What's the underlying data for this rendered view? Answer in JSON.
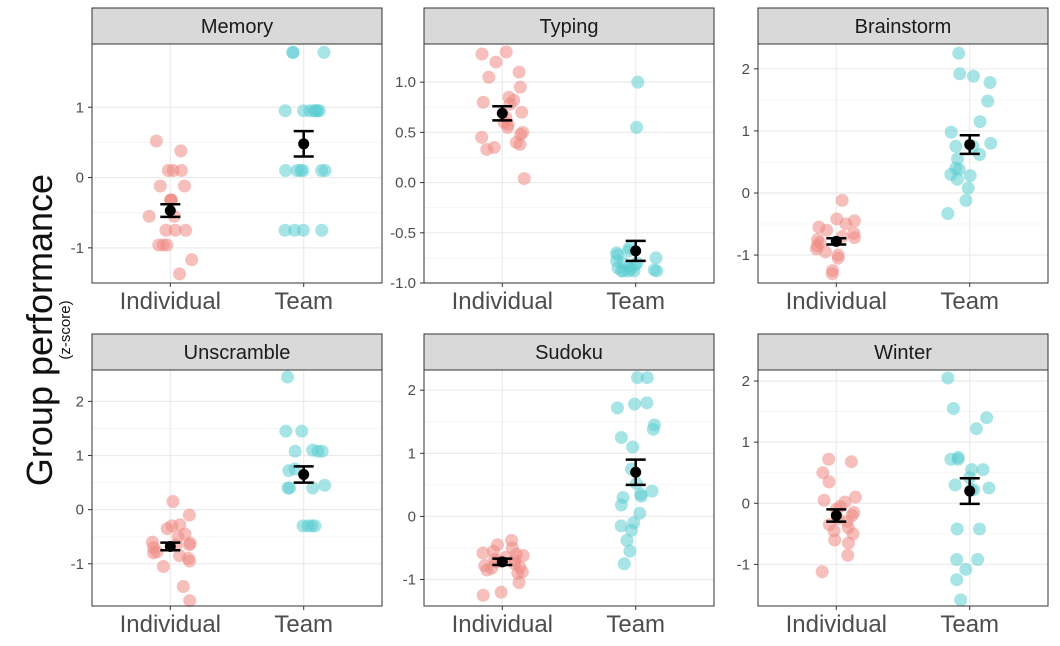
{
  "figure": {
    "ylabel": "Group performance",
    "ylabel_sub": "(z-score)"
  },
  "colors": {
    "individual": "#ee8a84",
    "team": "#5ccdd2",
    "mean": "#000000",
    "strip_bg": "#d9d9d9",
    "grid": "#ebebeb"
  },
  "chart_data": [
    {
      "type": "scatter",
      "title": "Memory",
      "categories": [
        "Individual",
        "Team"
      ],
      "ylim": [
        -1.5,
        1.9
      ],
      "yticks": [
        -1,
        0,
        1
      ],
      "series": [
        {
          "name": "Individual",
          "values": [
            0.52,
            0.38,
            0.1,
            0.1,
            -0.12,
            -0.12,
            0.1,
            -0.32,
            -0.32,
            -0.32,
            -0.55,
            -0.55,
            -0.75,
            -0.75,
            -0.75,
            -0.96,
            -0.96,
            -0.96,
            -1.17,
            -1.37
          ]
        },
        {
          "name": "Team",
          "values": [
            1.78,
            1.78,
            1.78,
            0.95,
            0.95,
            0.95,
            0.95,
            0.95,
            0.95,
            0.95,
            0.1,
            0.1,
            0.1,
            0.1,
            0.1,
            0.1,
            -0.75,
            -0.75,
            -0.75,
            -0.75
          ]
        }
      ],
      "means": [
        -0.47,
        0.48
      ],
      "se": [
        0.09,
        0.18
      ]
    },
    {
      "type": "scatter",
      "title": "Typing",
      "categories": [
        "Individual",
        "Team"
      ],
      "ylim": [
        -1.0,
        1.38
      ],
      "yticks": [
        -1.0,
        -0.5,
        0.0,
        0.5,
        1.0
      ],
      "ytick_labels": [
        "-1.0",
        "-0.5",
        "0.0",
        "0.5",
        "1.0"
      ],
      "series": [
        {
          "name": "Individual",
          "values": [
            1.3,
            1.28,
            1.2,
            1.1,
            1.05,
            0.95,
            0.85,
            0.82,
            0.8,
            0.78,
            0.7,
            0.65,
            0.6,
            0.58,
            0.55,
            0.5,
            0.48,
            0.45,
            0.4,
            0.38,
            0.35,
            0.33,
            0.04
          ]
        },
        {
          "name": "Team",
          "values": [
            1.0,
            0.55,
            -0.65,
            -0.68,
            -0.7,
            -0.72,
            -0.75,
            -0.78,
            -0.8,
            -0.8,
            -0.82,
            -0.84,
            -0.85,
            -0.86,
            -0.87,
            -0.88,
            -0.88,
            -0.88,
            -0.88,
            -0.88
          ]
        }
      ],
      "means": [
        0.69,
        -0.68
      ],
      "se": [
        0.07,
        0.1
      ]
    },
    {
      "type": "scatter",
      "title": "Brainstorm",
      "categories": [
        "Individual",
        "Team"
      ],
      "ylim": [
        -1.45,
        2.4
      ],
      "yticks": [
        -1,
        0,
        1,
        2
      ],
      "series": [
        {
          "name": "Individual",
          "values": [
            -0.12,
            -0.42,
            -0.45,
            -0.5,
            -0.55,
            -0.6,
            -0.65,
            -0.7,
            -0.72,
            -0.75,
            -0.8,
            -0.85,
            -0.9,
            -0.95,
            -1.0,
            -1.05,
            -1.25,
            -1.3
          ]
        },
        {
          "name": "Team",
          "values": [
            2.25,
            1.92,
            1.88,
            1.78,
            1.48,
            1.15,
            0.98,
            0.8,
            0.75,
            0.75,
            0.62,
            0.55,
            0.4,
            0.38,
            0.3,
            0.28,
            0.22,
            0.08,
            -0.12,
            -0.33
          ]
        }
      ],
      "means": [
        -0.78,
        0.78
      ],
      "se": [
        0.05,
        0.15
      ]
    },
    {
      "type": "scatter",
      "title": "Unscramble",
      "categories": [
        "Individual",
        "Team"
      ],
      "ylim": [
        -1.78,
        2.58
      ],
      "yticks": [
        -1,
        0,
        1,
        2
      ],
      "series": [
        {
          "name": "Individual",
          "values": [
            0.15,
            -0.1,
            -0.28,
            -0.3,
            -0.35,
            -0.45,
            -0.5,
            -0.6,
            -0.62,
            -0.65,
            -0.65,
            -0.7,
            -0.78,
            -0.8,
            -0.85,
            -0.9,
            -0.95,
            -1.05,
            -1.42,
            -1.68
          ]
        },
        {
          "name": "Team",
          "values": [
            2.45,
            1.45,
            1.45,
            1.1,
            1.08,
            1.08,
            1.08,
            0.75,
            0.72,
            0.45,
            0.4,
            0.4,
            0.4,
            -0.3,
            -0.3,
            -0.3,
            -0.3
          ]
        }
      ],
      "means": [
        -0.68,
        0.65
      ],
      "se": [
        0.07,
        0.15
      ]
    },
    {
      "type": "scatter",
      "title": "Sudoku",
      "categories": [
        "Individual",
        "Team"
      ],
      "ylim": [
        -1.42,
        2.32
      ],
      "yticks": [
        -1,
        0,
        1,
        2
      ],
      "series": [
        {
          "name": "Individual",
          "values": [
            -0.38,
            -0.45,
            -0.5,
            -0.55,
            -0.58,
            -0.6,
            -0.62,
            -0.65,
            -0.68,
            -0.7,
            -0.72,
            -0.75,
            -0.78,
            -0.8,
            -0.82,
            -0.85,
            -0.88,
            -0.9,
            -1.05,
            -1.2,
            -1.25
          ]
        },
        {
          "name": "Team",
          "values": [
            2.2,
            2.2,
            1.8,
            1.78,
            1.72,
            1.45,
            1.38,
            1.25,
            1.1,
            0.75,
            0.52,
            0.4,
            0.35,
            0.32,
            0.3,
            0.18,
            0.05,
            -0.1,
            -0.15,
            -0.22,
            -0.38,
            -0.55,
            -0.75
          ]
        }
      ],
      "means": [
        -0.72,
        0.7
      ],
      "se": [
        0.05,
        0.2
      ]
    },
    {
      "type": "scatter",
      "title": "Winter",
      "categories": [
        "Individual",
        "Team"
      ],
      "ylim": [
        -1.68,
        2.18
      ],
      "yticks": [
        -1,
        0,
        1,
        2
      ],
      "series": [
        {
          "name": "Individual",
          "values": [
            0.72,
            0.68,
            0.5,
            0.35,
            0.1,
            0.05,
            0.02,
            -0.05,
            -0.1,
            -0.15,
            -0.2,
            -0.25,
            -0.3,
            -0.35,
            -0.4,
            -0.45,
            -0.5,
            -0.6,
            -0.65,
            -0.85,
            -1.12
          ]
        },
        {
          "name": "Team",
          "values": [
            2.05,
            1.55,
            1.4,
            1.22,
            0.75,
            0.72,
            0.72,
            0.55,
            0.55,
            0.42,
            0.3,
            0.25,
            0.22,
            0.22,
            -0.42,
            -0.42,
            -0.92,
            -0.92,
            -1.08,
            -1.25,
            -1.58
          ]
        }
      ],
      "means": [
        -0.2,
        0.2
      ],
      "se": [
        0.1,
        0.21
      ]
    }
  ]
}
